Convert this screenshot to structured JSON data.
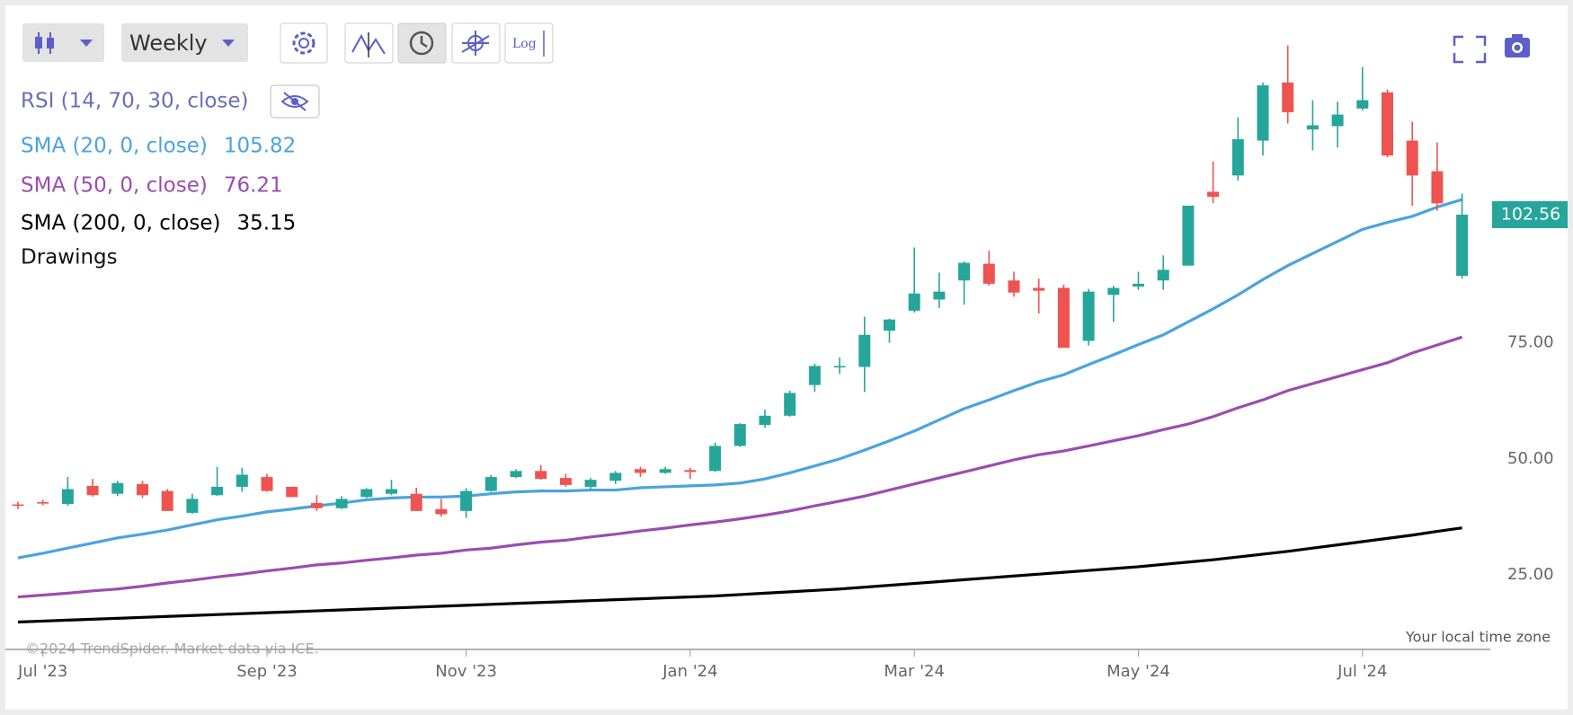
{
  "toolbar": {
    "interval": "Weekly",
    "log": "Log"
  },
  "legend": {
    "rsi": "RSI (14, 70, 30, close)",
    "drawings": "Drawings"
  },
  "footer": {
    "copyright": "©2024 TrendSpider. Market data via ICE.",
    "timezone": "Your local time zone"
  },
  "chart_data": {
    "type": "candlestick",
    "up_color": "#26a69a",
    "down_color": "#ef5350",
    "categories": [
      null,
      "Jul '23",
      null,
      null,
      null,
      null,
      null,
      null,
      null,
      null,
      "Sep '23",
      null,
      null,
      null,
      null,
      null,
      null,
      null,
      "Nov '23",
      null,
      null,
      null,
      null,
      null,
      null,
      null,
      null,
      "Jan '24",
      null,
      null,
      null,
      null,
      null,
      null,
      null,
      null,
      "Mar '24",
      null,
      null,
      null,
      null,
      null,
      null,
      null,
      null,
      "May '24",
      null,
      null,
      null,
      null,
      null,
      null,
      null,
      null,
      "Jul '24",
      null,
      null,
      null,
      null
    ],
    "open": [
      40.2,
      40.7,
      40.3,
      44.2,
      42.5,
      44.6,
      43.1,
      38.4,
      42.2,
      44.0,
      46.1,
      44.0,
      40.5,
      39.4,
      41.8,
      42.5,
      42.5,
      39.2,
      38.8,
      43.1,
      46.1,
      47.4,
      45.9,
      44.0,
      45.3,
      47.8,
      47.0,
      47.6,
      47.4,
      52.8,
      57.3,
      59.3,
      65.9,
      69.8,
      69.8,
      77.6,
      81.9,
      84.3,
      88.4,
      92.0,
      88.4,
      86.8,
      86.8,
      75.4,
      85.3,
      87.1,
      88.4,
      91.6,
      107.5,
      111.0,
      118.5,
      131.0,
      120.9,
      121.6,
      125.4,
      128.9,
      118.5,
      111.9,
      89.4
    ],
    "high": [
      40.8,
      41.2,
      46.1,
      45.7,
      45.3,
      45.3,
      43.5,
      42.5,
      48.3,
      48.1,
      46.8,
      44.0,
      42.2,
      42.0,
      43.7,
      45.5,
      43.8,
      41.4,
      43.7,
      46.6,
      47.8,
      48.7,
      46.8,
      45.9,
      47.4,
      48.3,
      48.3,
      48.1,
      53.5,
      57.7,
      60.6,
      64.7,
      70.5,
      71.8,
      80.6,
      80.2,
      95.5,
      90.1,
      92.5,
      94.8,
      90.3,
      88.8,
      87.5,
      86.6,
      87.3,
      90.3,
      93.8,
      104.5,
      114.0,
      123.5,
      131.0,
      139.0,
      127.2,
      126.9,
      134.3,
      129.5,
      122.6,
      118.1,
      107.1
    ],
    "low": [
      39.2,
      40.0,
      39.9,
      41.9,
      42.0,
      41.6,
      38.8,
      38.2,
      42.0,
      42.9,
      42.9,
      41.8,
      38.8,
      39.2,
      41.6,
      42.2,
      38.8,
      37.6,
      37.3,
      42.9,
      45.9,
      45.5,
      44.0,
      43.5,
      44.6,
      46.1,
      46.8,
      45.7,
      47.2,
      52.6,
      56.7,
      59.1,
      64.4,
      68.3,
      64.4,
      75.0,
      81.5,
      82.5,
      83.2,
      87.3,
      84.9,
      81.3,
      73.9,
      74.4,
      79.5,
      86.4,
      86.4,
      91.6,
      105.0,
      109.9,
      115.3,
      122.2,
      116.4,
      117.0,
      125.0,
      114.9,
      104.5,
      103.4,
      88.8
    ],
    "close": [
      39.9,
      40.5,
      43.5,
      42.2,
      44.8,
      42.2,
      38.8,
      41.4,
      44.0,
      46.6,
      43.1,
      41.8,
      39.4,
      41.4,
      43.5,
      43.5,
      38.8,
      38.1,
      43.1,
      46.1,
      47.4,
      45.7,
      44.4,
      45.5,
      47.0,
      47.0,
      47.8,
      47.2,
      52.8,
      57.5,
      59.3,
      64.2,
      70.0,
      70.0,
      76.7,
      80.0,
      85.6,
      86.0,
      92.2,
      87.7,
      85.8,
      86.2,
      73.9,
      86.0,
      86.8,
      87.7,
      90.7,
      104.5,
      106.4,
      118.8,
      130.4,
      124.6,
      121.8,
      124.1,
      127.2,
      115.3,
      111.0,
      105.0,
      102.56
    ],
    "series": [
      {
        "name": "SMA (20, 0, close)",
        "color": "#4aa3df",
        "values": [
          28.7,
          29.7,
          30.8,
          31.9,
          33.0,
          33.8,
          34.7,
          35.8,
          36.9,
          37.7,
          38.6,
          39.2,
          39.9,
          40.5,
          41.2,
          41.6,
          41.8,
          41.8,
          42.0,
          42.5,
          42.9,
          43.1,
          43.1,
          43.3,
          43.3,
          43.8,
          44.0,
          44.2,
          44.4,
          44.8,
          45.7,
          47.0,
          48.5,
          50.0,
          51.9,
          53.9,
          56.0,
          58.4,
          60.8,
          62.7,
          64.7,
          66.6,
          68.1,
          70.3,
          72.4,
          74.6,
          76.7,
          79.5,
          82.3,
          85.3,
          88.6,
          91.6,
          94.2,
          96.8,
          99.4,
          100.9,
          102.2,
          104.2,
          105.82
        ]
      },
      {
        "name": "SMA (50, 0, close)",
        "color": "#9b4db0",
        "values": [
          20.3,
          20.7,
          21.1,
          21.6,
          22.0,
          22.6,
          23.3,
          23.9,
          24.6,
          25.2,
          25.9,
          26.5,
          27.2,
          27.6,
          28.2,
          28.7,
          29.3,
          29.7,
          30.4,
          30.8,
          31.5,
          32.1,
          32.5,
          33.2,
          33.8,
          34.5,
          35.1,
          35.8,
          36.4,
          37.1,
          37.9,
          38.8,
          39.9,
          40.9,
          42.0,
          43.3,
          44.6,
          45.9,
          47.2,
          48.5,
          49.8,
          50.9,
          51.7,
          52.8,
          53.9,
          55.0,
          56.3,
          57.5,
          59.1,
          61.0,
          62.7,
          64.7,
          66.2,
          67.7,
          69.2,
          70.7,
          72.8,
          74.5,
          76.21
        ]
      },
      {
        "name": "SMA (200, 0, close)",
        "color": "#000000",
        "values": [
          14.9,
          15.1,
          15.3,
          15.5,
          15.7,
          15.9,
          16.1,
          16.3,
          16.5,
          16.7,
          16.9,
          17.1,
          17.3,
          17.5,
          17.7,
          17.9,
          18.1,
          18.3,
          18.5,
          18.7,
          18.9,
          19.1,
          19.3,
          19.5,
          19.7,
          19.9,
          20.1,
          20.3,
          20.5,
          20.8,
          21.1,
          21.4,
          21.7,
          22.0,
          22.4,
          22.8,
          23.2,
          23.6,
          24.0,
          24.4,
          24.8,
          25.2,
          25.6,
          26.0,
          26.4,
          26.8,
          27.3,
          27.8,
          28.3,
          28.9,
          29.5,
          30.1,
          30.8,
          31.5,
          32.2,
          32.9,
          33.6,
          34.4,
          35.15
        ]
      }
    ],
    "ylim": [
      9,
      147.6
    ],
    "yticks": [
      {
        "value": 25,
        "label": "25.00"
      },
      {
        "value": 50,
        "label": "50.00"
      },
      {
        "value": 75,
        "label": "75.00"
      }
    ],
    "grid": false
  }
}
